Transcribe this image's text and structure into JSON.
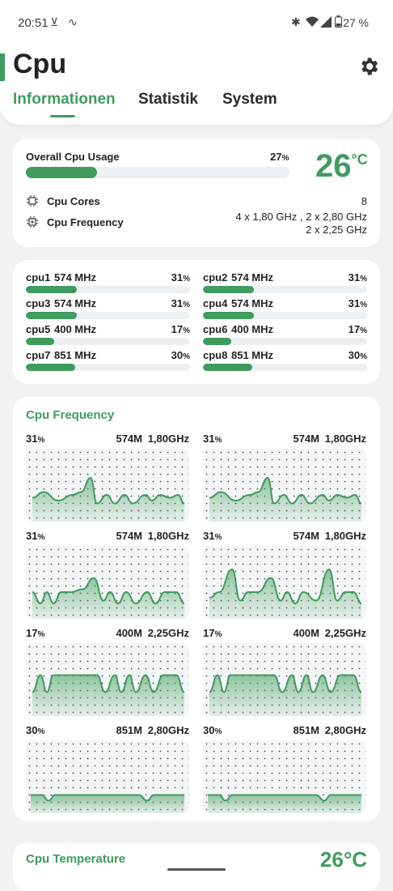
{
  "status_bar": {
    "time": "20:51",
    "battery": "27 %"
  },
  "app": {
    "title": "Cpu"
  },
  "tabs": [
    {
      "label": "Informationen",
      "active": true
    },
    {
      "label": "Statistik",
      "active": false
    },
    {
      "label": "System",
      "active": false
    }
  ],
  "overview": {
    "usage_label": "Overall Cpu Usage",
    "usage_value": "27",
    "usage_fraction": 0.27,
    "temperature": "26",
    "temperature_unit": "°C",
    "cores_label": "Cpu Cores",
    "cores_value": "8",
    "frequency_label": "Cpu Frequency",
    "frequency_line1": "4 x 1,80 GHz , 2 x 2,80 GHz",
    "frequency_line2": "2 x 2,25 GHz"
  },
  "percent_suffix": "%",
  "cores": [
    {
      "name": "cpu1",
      "freq": "574 MHz",
      "usage": "31",
      "fraction": 0.31
    },
    {
      "name": "cpu2",
      "freq": "574 MHz",
      "usage": "31",
      "fraction": 0.31
    },
    {
      "name": "cpu3",
      "freq": "574 MHz",
      "usage": "31",
      "fraction": 0.31
    },
    {
      "name": "cpu4",
      "freq": "574 MHz",
      "usage": "31",
      "fraction": 0.31
    },
    {
      "name": "cpu5",
      "freq": "400 MHz",
      "usage": "17",
      "fraction": 0.17
    },
    {
      "name": "cpu6",
      "freq": "400 MHz",
      "usage": "17",
      "fraction": 0.17
    },
    {
      "name": "cpu7",
      "freq": "851 MHz",
      "usage": "30",
      "fraction": 0.3
    },
    {
      "name": "cpu8",
      "freq": "851 MHz",
      "usage": "30",
      "fraction": 0.3
    }
  ],
  "frequency_section": {
    "title": "Cpu Frequency",
    "charts": [
      {
        "usage": "31",
        "current": "574M",
        "max": "1,80GHz"
      },
      {
        "usage": "31",
        "current": "574M",
        "max": "1,80GHz"
      },
      {
        "usage": "31",
        "current": "574M",
        "max": "1,80GHz"
      },
      {
        "usage": "31",
        "current": "574M",
        "max": "1,80GHz"
      },
      {
        "usage": "17",
        "current": "400M",
        "max": "2,25GHz"
      },
      {
        "usage": "17",
        "current": "400M",
        "max": "2,25GHz"
      },
      {
        "usage": "30",
        "current": "851M",
        "max": "2,80GHz"
      },
      {
        "usage": "30",
        "current": "851M",
        "max": "2,80GHz"
      }
    ]
  },
  "temperature_section": {
    "title": "Cpu Temperature",
    "value": "26°C"
  },
  "colors": {
    "accent": "#3f9c5e",
    "track": "#edf0f2",
    "background": "#f1f2f4"
  }
}
